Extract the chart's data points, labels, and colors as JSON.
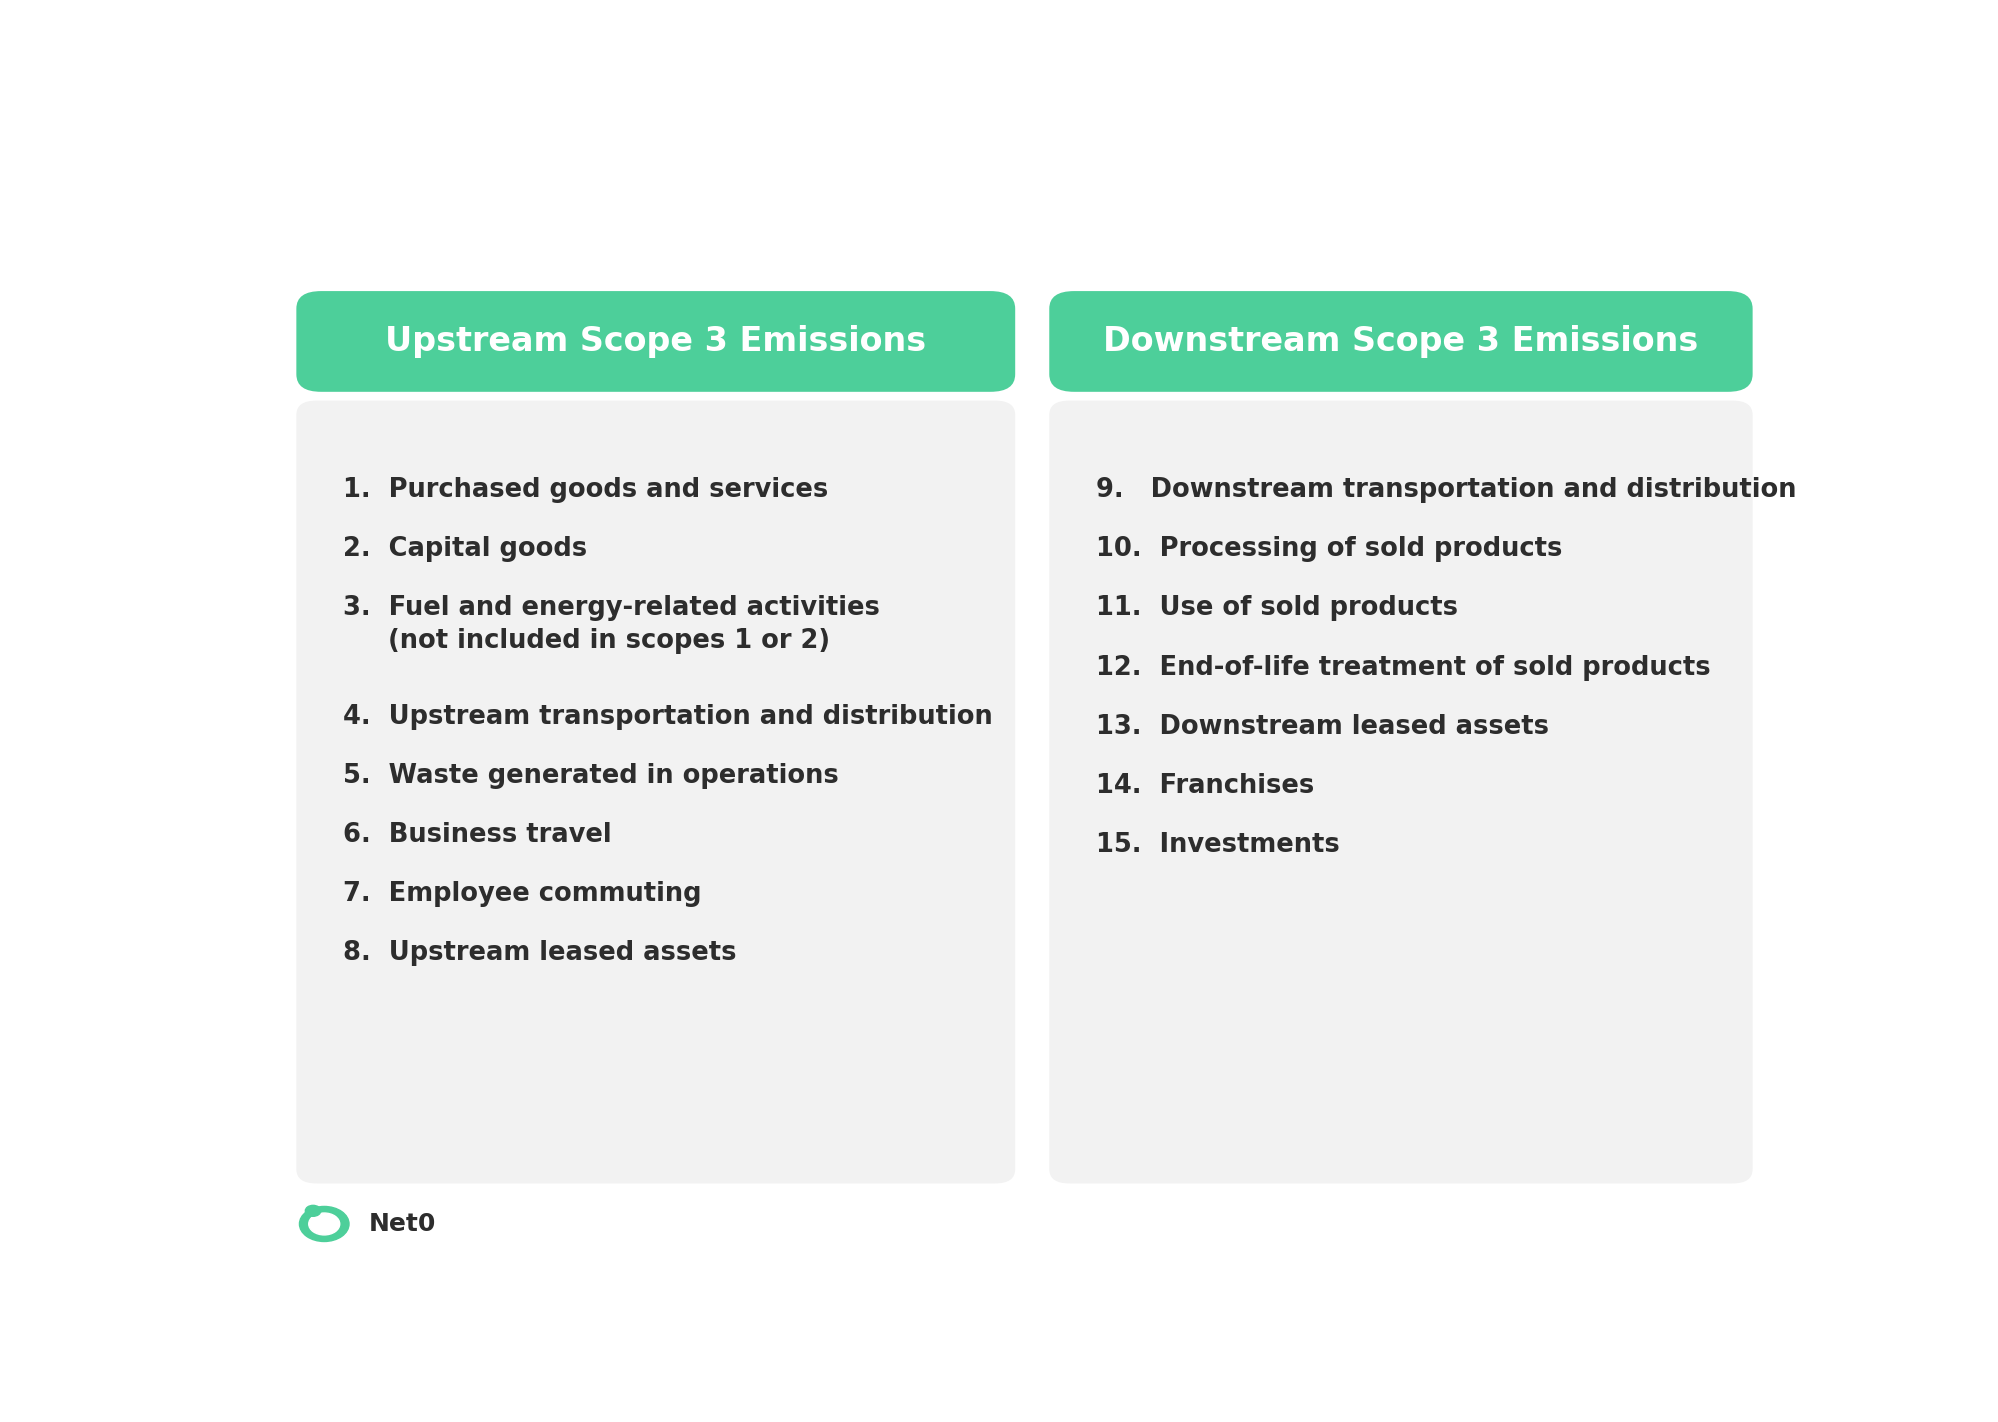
{
  "background_color": "#ffffff",
  "header_color": "#4dcf9a",
  "card_color": "#f2f2f2",
  "header_text_color": "#ffffff",
  "body_text_color": "#2d2d2d",
  "logo_text_color": "#2d2d2d",
  "upstream_title": "Upstream Scope 3 Emissions",
  "downstream_title": "Downstream Scope 3 Emissions",
  "upstream_items": [
    "1.  Purchased goods and services",
    "2.  Capital goods",
    "3.  Fuel and energy-related activities\n     (not included in scopes 1 or 2)",
    "4.  Upstream transportation and distribution",
    "5.  Waste generated in operations",
    "6.  Business travel",
    "7.  Employee commuting",
    "8.  Upstream leased assets"
  ],
  "downstream_items": [
    "9.   Downstream transportation and distribution",
    "10.  Processing of sold products",
    "11.  Use of sold products",
    "12.  End-of-life treatment of sold products",
    "13.  Downstream leased assets",
    "14.  Franchises",
    "15.  Investments"
  ],
  "logo_text": "Net0",
  "header_font_size": 24,
  "body_font_size": 18.5,
  "logo_font_size": 18
}
